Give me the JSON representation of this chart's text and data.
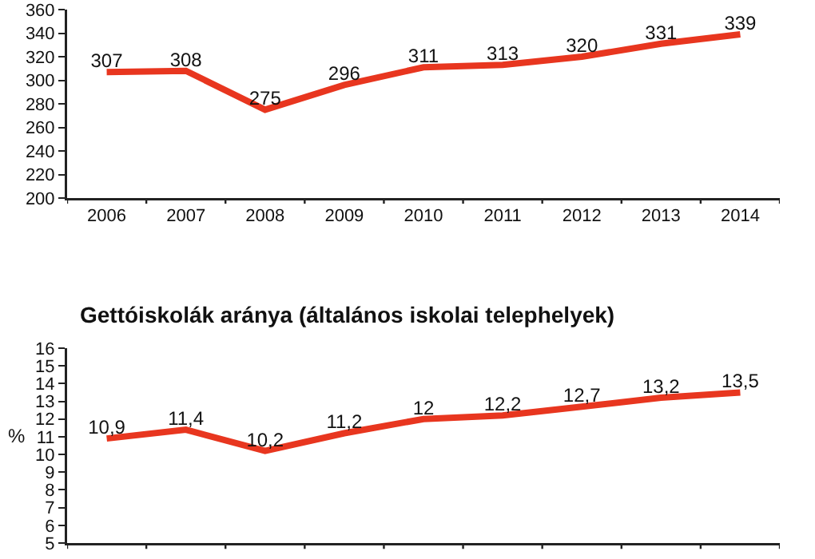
{
  "chart_data": [
    {
      "type": "line",
      "categories": [
        "2006",
        "2007",
        "2008",
        "2009",
        "2010",
        "2011",
        "2012",
        "2013",
        "2014"
      ],
      "series": [
        {
          "color": "#e8361f",
          "values": [
            307,
            308,
            275,
            296,
            311,
            313,
            320,
            331,
            339
          ]
        }
      ],
      "ylim": [
        200,
        360
      ],
      "yticks": [
        200,
        220,
        240,
        260,
        280,
        300,
        320,
        340,
        360
      ],
      "data_labels": true,
      "grid": false,
      "marker": "none",
      "line_style": "solid"
    },
    {
      "type": "line",
      "title": "Gettóiskolák aránya (általános iskolai telephelyek)",
      "ylabel": "%",
      "categories": [
        null,
        null,
        null,
        null,
        null,
        null,
        null,
        null,
        null
      ],
      "series": [
        {
          "color": "#e8361f",
          "values": [
            10.9,
            11.4,
            10.2,
            11.2,
            12,
            12.2,
            12.7,
            13.2,
            13.5
          ],
          "value_labels": [
            "10,9",
            "11,4",
            "10,2",
            "11,2",
            "12",
            "12,2",
            "12,7",
            "13,2",
            "13,5"
          ]
        }
      ],
      "ylim": [
        5,
        16
      ],
      "yticks": [
        5,
        6,
        7,
        8,
        9,
        10,
        11,
        12,
        13,
        14,
        15,
        16
      ],
      "tick_labels": "y",
      "grid": false,
      "marker": "none",
      "line_style": "solid"
    }
  ]
}
